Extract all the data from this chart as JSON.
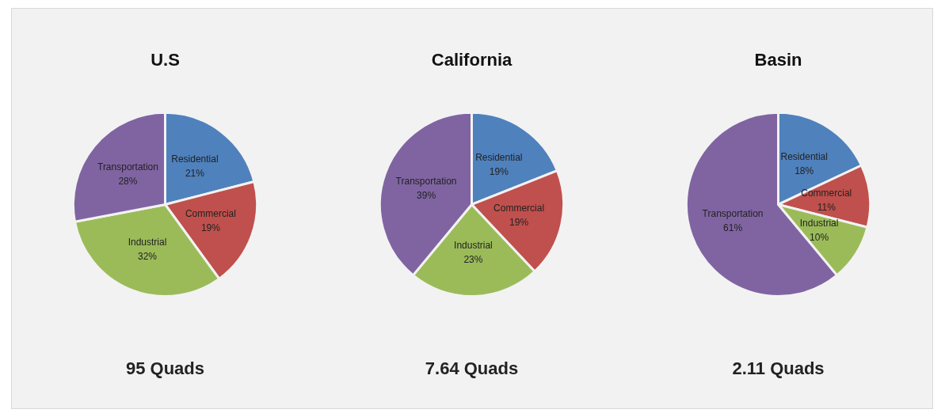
{
  "chart_data": [
    {
      "type": "pie",
      "title": "U.S",
      "categories": [
        "Residential",
        "Commercial",
        "Industrial",
        "Transportation"
      ],
      "values": [
        21,
        19,
        32,
        28
      ],
      "value_labels": [
        "21%",
        "19%",
        "32%",
        "28%"
      ],
      "colors": [
        "#4f81bd",
        "#c0504d",
        "#9bbb59",
        "#8064a2"
      ],
      "annotations": [
        "95 Quads"
      ]
    },
    {
      "type": "pie",
      "title": "California",
      "categories": [
        "Residential",
        "Commercial",
        "Industrial",
        "Transportation"
      ],
      "values": [
        19,
        19,
        23,
        39
      ],
      "value_labels": [
        "19%",
        "19%",
        "23%",
        "39%"
      ],
      "colors": [
        "#4f81bd",
        "#c0504d",
        "#9bbb59",
        "#8064a2"
      ],
      "annotations": [
        "7.64 Quads"
      ]
    },
    {
      "type": "pie",
      "title": "Basin",
      "categories": [
        "Residential",
        "Commercial",
        "Industrial",
        "Transportation"
      ],
      "values": [
        18,
        11,
        10,
        61
      ],
      "value_labels": [
        "18%",
        "11%",
        "10%",
        "61%"
      ],
      "colors": [
        "#4f81bd",
        "#c0504d",
        "#9bbb59",
        "#8064a2"
      ],
      "annotations": [
        "2.11 Quads"
      ]
    }
  ]
}
